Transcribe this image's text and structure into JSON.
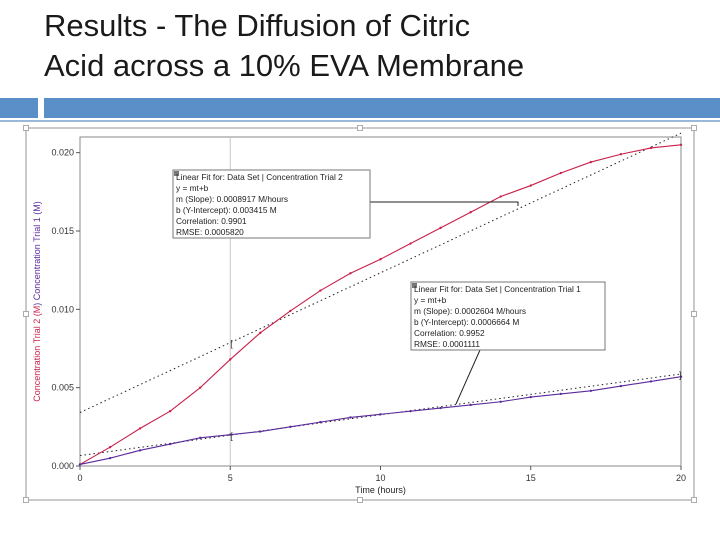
{
  "slide": {
    "title_line1": "Results - The Diffusion of Citric",
    "title_line2": "Acid across a 10% EVA Membrane"
  },
  "colors": {
    "accent": "#5b8fc7",
    "trial1": "#5a2a9a",
    "trial2": "#c8204a",
    "fit": "#222222"
  },
  "chart_data": {
    "type": "line",
    "xlabel": "Time (hours)",
    "ylabel_trial1": "Concentration Trial 1 (M)",
    "ylabel_trial2": "Concentration Trial 2 (M)",
    "ylabel_seg1": "Concentration Trial 2 (",
    "ylabel_mid": "M",
    "ylabel_seg2": ")  Concentration Trial 1 (",
    "ylabel_end": "M)",
    "xlim": [
      0,
      20
    ],
    "ylim": [
      0,
      0.021
    ],
    "x_ticks": [
      "0",
      "5",
      "10",
      "15",
      "20"
    ],
    "y_ticks": [
      "0.000",
      "0.005",
      "0.010",
      "0.015",
      "0.020"
    ],
    "grid": "crosshair at x=5",
    "series": [
      {
        "key": "trial2",
        "x": [
          0,
          1,
          2,
          3,
          4,
          5,
          6,
          7,
          8,
          9,
          10,
          11,
          12,
          13,
          14,
          15,
          16,
          17,
          18,
          19,
          20
        ],
        "y": [
          0.0001,
          0.0012,
          0.0024,
          0.0035,
          0.005,
          0.0068,
          0.0085,
          0.0099,
          0.0112,
          0.0123,
          0.0132,
          0.0142,
          0.0152,
          0.0162,
          0.0172,
          0.0179,
          0.0187,
          0.0194,
          0.0199,
          0.0203,
          0.0205
        ]
      },
      {
        "key": "trial1",
        "x": [
          0,
          1,
          2,
          3,
          4,
          5,
          6,
          7,
          8,
          9,
          10,
          11,
          12,
          13,
          14,
          15,
          16,
          17,
          18,
          19,
          20
        ],
        "y": [
          0.0001,
          0.0005,
          0.001,
          0.0014,
          0.0018,
          0.002,
          0.0022,
          0.0025,
          0.0028,
          0.0031,
          0.0033,
          0.0035,
          0.0037,
          0.0039,
          0.0041,
          0.0044,
          0.0046,
          0.0048,
          0.0051,
          0.0054,
          0.0057
        ]
      }
    ],
    "fit_trial2": {
      "slope": 0.0008917,
      "intercept": 0.003415,
      "x_range": [
        0,
        20
      ]
    },
    "fit_trial1": {
      "slope": 0.0002604,
      "intercept": 0.0006664,
      "x_range": [
        0,
        20
      ]
    },
    "annotations": [
      {
        "key": "fit2",
        "lines": [
          "Linear Fit for: Data Set | Concentration Trial 2",
          "y = mt+b",
          "m (Slope): 0.0008917 M/hours",
          "b (Y-Intercept): 0.003415 M",
          "Correlation: 0.9901",
          "RMSE: 0.0005820"
        ]
      },
      {
        "key": "fit1",
        "lines": [
          "Linear Fit for: Data Set | Concentration Trial 1",
          "y = mt+b",
          "m (Slope): 0.0002604 M/hours",
          "b (Y-Intercept): 0.0006664 M",
          "Correlation: 0.9952",
          "RMSE: 0.0001111"
        ]
      }
    ]
  }
}
